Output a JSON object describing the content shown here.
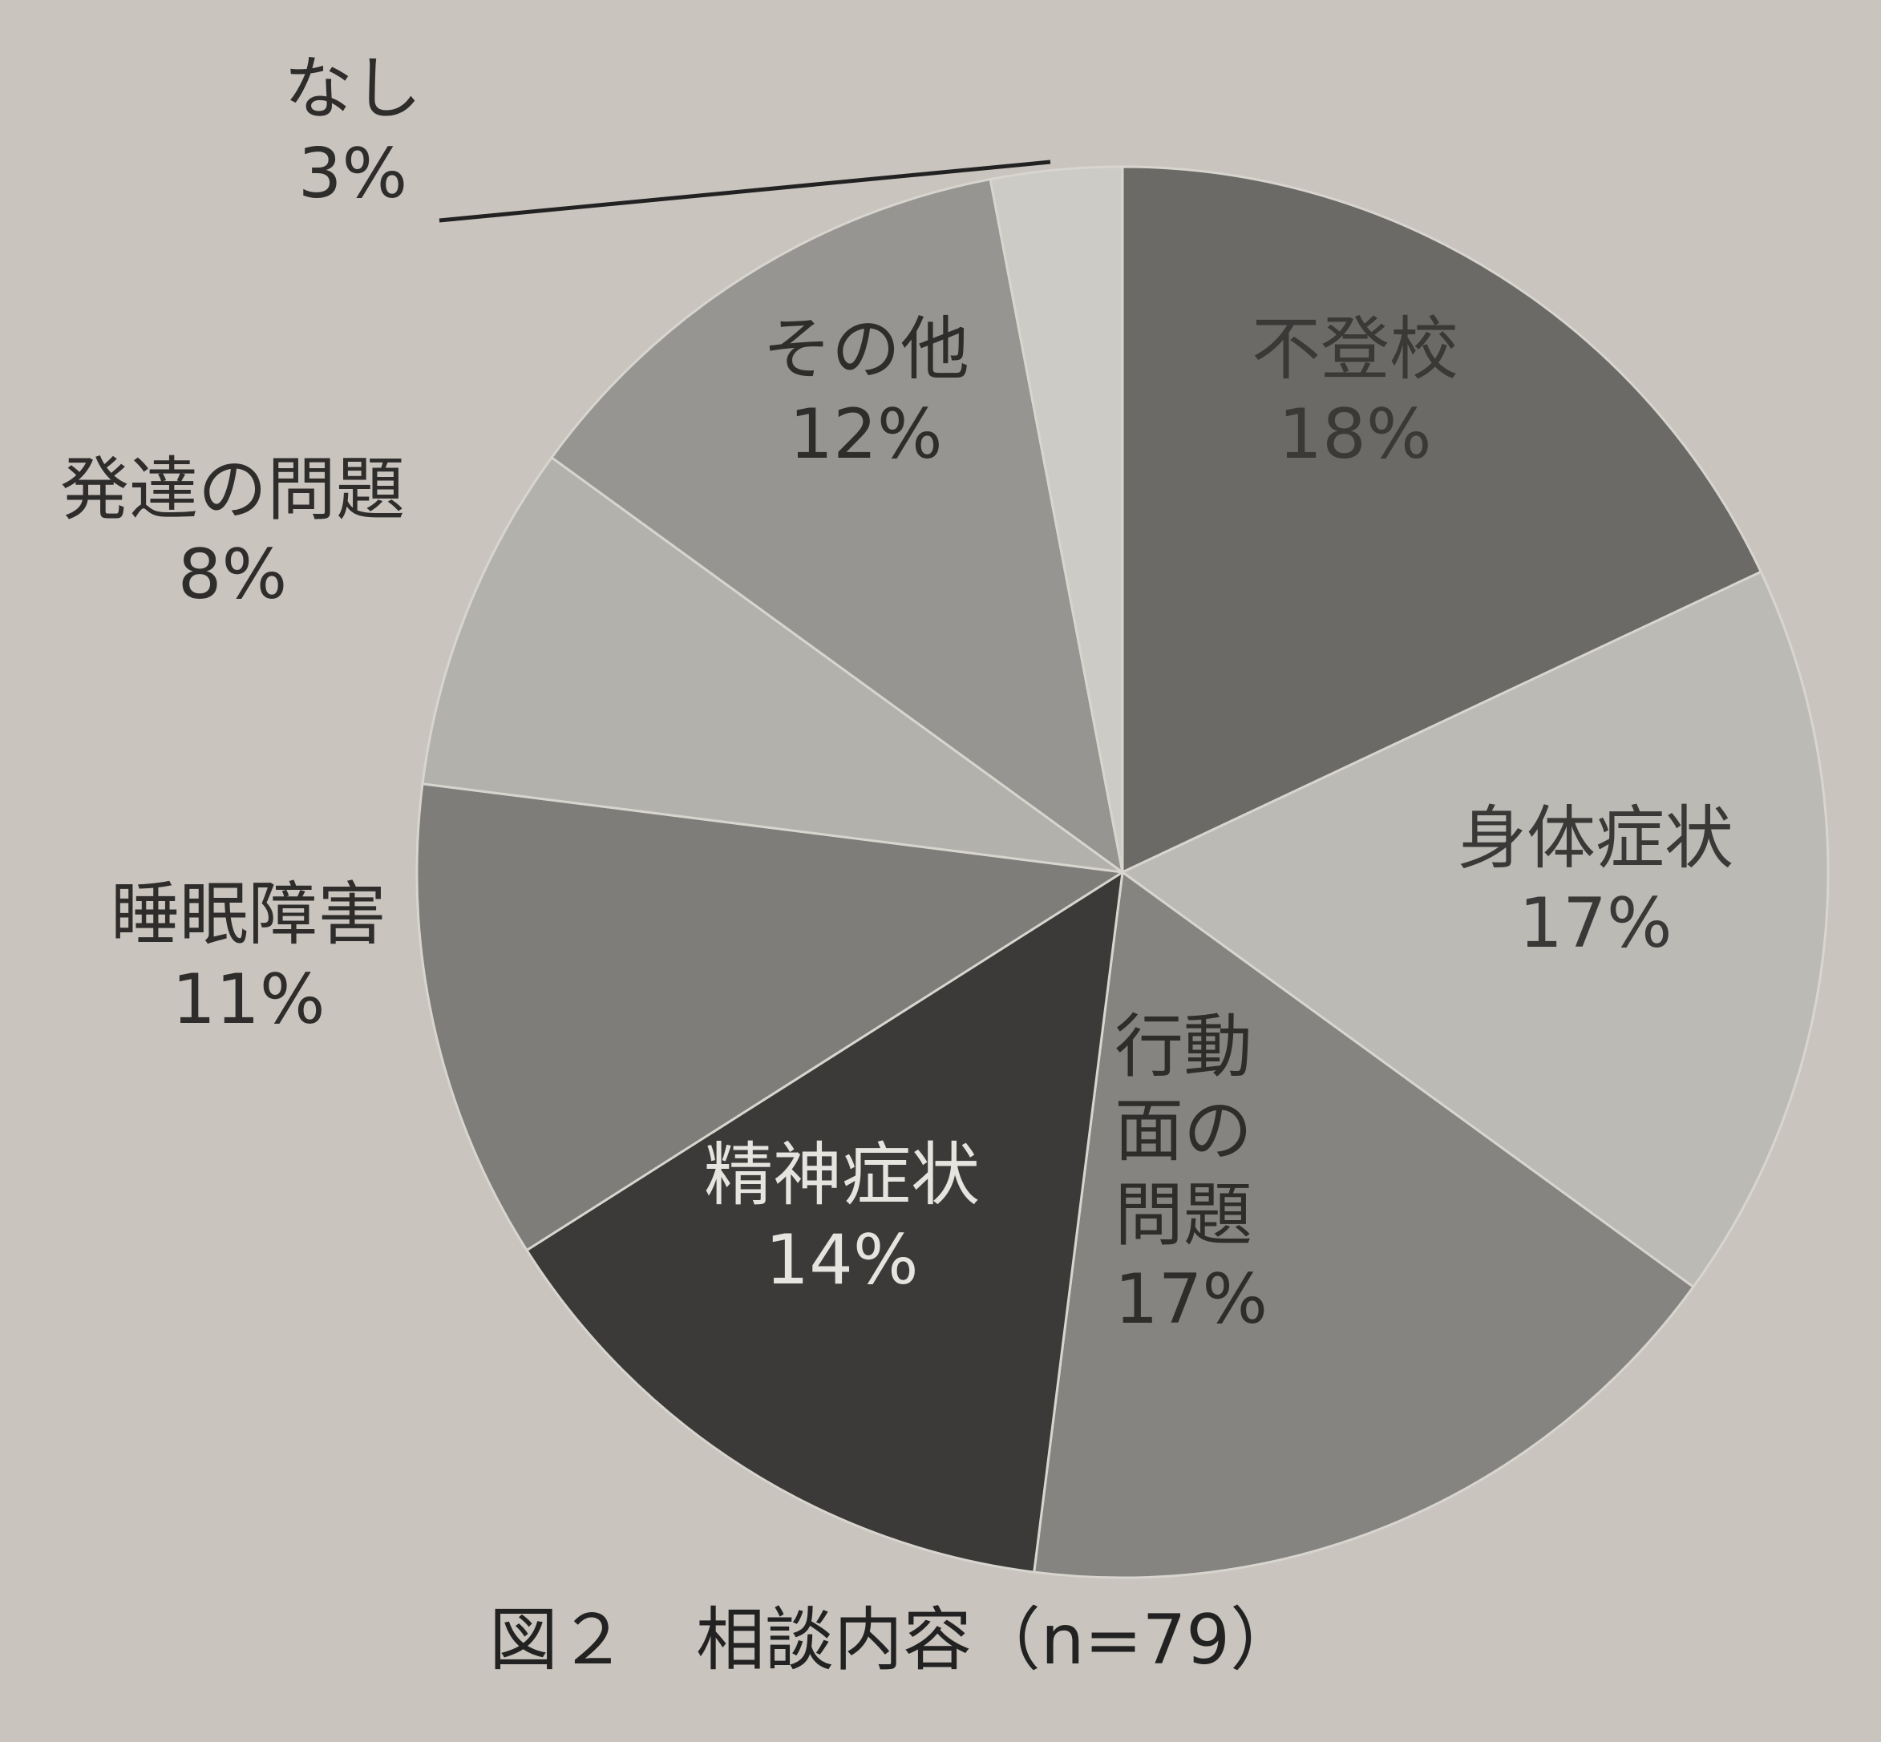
{
  "chart_data": {
    "type": "pie",
    "caption": "図２　相談内容（n=79）",
    "start": "12 o'clock",
    "direction": "clockwise",
    "slices": [
      {
        "name": "不登校",
        "percent_label": "18%",
        "value": 18,
        "color": "#6b6a66",
        "text_color": "#3a3937"
      },
      {
        "name": "身体症状",
        "percent_label": "17%",
        "value": 17,
        "color": "#bcbab5",
        "text_color": "#3a3937"
      },
      {
        "name": "行動面の問題",
        "name_lines": [
          "行動",
          "面の",
          "問題"
        ],
        "percent_label": "17%",
        "value": 17,
        "color": "#858480",
        "text_color": "#2e2d2b"
      },
      {
        "name": "精神症状",
        "percent_label": "14%",
        "value": 14,
        "color": "#3b3a38",
        "text_color": "#e6e4df"
      },
      {
        "name": "睡眠障害",
        "percent_label": "11%",
        "value": 11,
        "color": "#7e7d79",
        "text_color": "#2e2d2b"
      },
      {
        "name": "発達の問題",
        "percent_label": "8%",
        "value": 8,
        "color": "#b3b1ac",
        "text_color": "#2e2d2b"
      },
      {
        "name": "その他",
        "percent_label": "12%",
        "value": 12,
        "color": "#969591",
        "text_color": "#2e2d2b"
      },
      {
        "name": "なし",
        "percent_label": "3%",
        "value": 3,
        "color": "#cdcbc6",
        "text_color": "#2e2d2b"
      }
    ]
  }
}
